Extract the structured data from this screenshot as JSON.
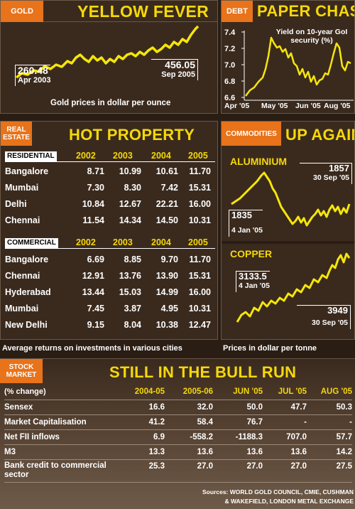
{
  "gold": {
    "tag": "GOLD",
    "title": "YELLOW FEVER",
    "start_value": "260.48",
    "start_date": "Apr 2003",
    "end_value": "456.05",
    "end_date": "Sep 2005",
    "caption": "Gold prices in dollar per ounce"
  },
  "debt": {
    "tag": "DEBT",
    "title": "PAPER CHASE",
    "annotation": "Yield on 10-year GoI security (%)",
    "yticks": [
      "7.4",
      "7.2",
      "7.0",
      "6.8",
      "6.6"
    ],
    "xticks": [
      "Apr '05",
      "May '05",
      "Jun '05",
      "Aug '05"
    ]
  },
  "real_estate": {
    "tag": "REAL ESTATE",
    "title": "HOT PROPERTY",
    "residential_label": "RESIDENTIAL",
    "commercial_label": "COMMERCIAL",
    "years": [
      "2002",
      "2003",
      "2004",
      "2005"
    ],
    "residential": [
      {
        "city": "Bangalore",
        "values": [
          "8.71",
          "10.99",
          "10.61",
          "11.70"
        ]
      },
      {
        "city": "Mumbai",
        "values": [
          "7.30",
          "8.30",
          "7.42",
          "15.31"
        ]
      },
      {
        "city": "Delhi",
        "values": [
          "10.84",
          "12.67",
          "22.21",
          "16.00"
        ]
      },
      {
        "city": "Chennai",
        "values": [
          "11.54",
          "14.34",
          "14.50",
          "10.31"
        ]
      }
    ],
    "commercial": [
      {
        "city": "Bangalore",
        "values": [
          "6.69",
          "8.85",
          "9.70",
          "11.70"
        ]
      },
      {
        "city": "Chennai",
        "values": [
          "12.91",
          "13.76",
          "13.90",
          "15.31"
        ]
      },
      {
        "city": "Hyderabad",
        "values": [
          "13.44",
          "15.03",
          "14.99",
          "16.00"
        ]
      },
      {
        "city": "Mumbai",
        "values": [
          "7.45",
          "3.87",
          "4.95",
          "10.31"
        ]
      },
      {
        "city": "New Delhi",
        "values": [
          "9.15",
          "8.04",
          "10.38",
          "12.47"
        ]
      }
    ],
    "caption": "Average returns on investments in various cities"
  },
  "commodities": {
    "tag": "COMMODITIES",
    "title": "UP AGAIN",
    "aluminium": {
      "label": "ALUMINIUM",
      "start_value": "1835",
      "start_date": "4 Jan '05",
      "end_value": "1857",
      "end_date": "30 Sep '05"
    },
    "copper": {
      "label": "COPPER",
      "start_value": "3133.5",
      "start_date": "4 Jan '05",
      "end_value": "3949",
      "end_date": "30 Sep '05"
    },
    "caption": "Prices in dollar per tonne"
  },
  "stock": {
    "tag": "STOCK MARKET",
    "title": "STILL IN THE BULL RUN",
    "unit_label": "(% change)",
    "columns": [
      "2004-05",
      "2005-06",
      "JUN '05",
      "JUL '05",
      "AUG '05"
    ],
    "rows": [
      {
        "label": "Sensex",
        "values": [
          "16.6",
          "32.0",
          "50.0",
          "47.7",
          "50.3"
        ]
      },
      {
        "label": "Market Capitalisation",
        "values": [
          "41.2",
          "58.4",
          "76.7",
          "-",
          "-"
        ]
      },
      {
        "label": "Net FII inflows",
        "values": [
          "6.9",
          "-558.2",
          "-1188.3",
          "707.0",
          "57.7"
        ]
      },
      {
        "label": "M3",
        "values": [
          "13.3",
          "13.6",
          "13.6",
          "13.6",
          "14.2"
        ]
      },
      {
        "label": "Bank credit to commercial sector",
        "values": [
          "25.3",
          "27.0",
          "27.0",
          "27.0",
          "27.5"
        ]
      }
    ]
  },
  "sources": {
    "line1": "Sources: WORLD GOLD COUNCIL, CMIE, CUSHMAN",
    "line2": "& WAKEFIELD, LONDON METAL EXCHANGE"
  },
  "colors": {
    "accent": "#e8731a",
    "headline": "#f5d80a",
    "line": "#f5e60a"
  },
  "chart_data": [
    {
      "type": "line",
      "title": "YELLOW FEVER",
      "caption": "Gold prices in dollar per ounce",
      "x": [
        "Apr 2003",
        "Sep 2005"
      ],
      "values": [
        260.48,
        456.05
      ]
    },
    {
      "type": "line",
      "title": "PAPER CHASE",
      "ylabel": "Yield on 10-year GoI security (%)",
      "ylim": [
        6.6,
        7.4
      ],
      "x_ticks": [
        "Apr '05",
        "May '05",
        "Jun '05",
        "Aug '05"
      ],
      "x": [
        "Apr '05",
        "Apr '05",
        "May '05",
        "May '05",
        "Jun '05",
        "Jun '05",
        "Jul '05",
        "Aug '05",
        "Aug '05",
        "Sep '05"
      ],
      "values": [
        6.65,
        6.9,
        7.3,
        7.1,
        6.95,
        6.8,
        6.85,
        7.0,
        7.15,
        7.05
      ]
    },
    {
      "type": "line",
      "title": "ALUMINIUM",
      "caption": "Prices in dollar per tonne",
      "x": [
        "4 Jan '05",
        "30 Sep '05"
      ],
      "values": [
        1835,
        1857
      ]
    },
    {
      "type": "line",
      "title": "COPPER",
      "caption": "Prices in dollar per tonne",
      "x": [
        "4 Jan '05",
        "30 Sep '05"
      ],
      "values": [
        3133.5,
        3949
      ]
    }
  ]
}
